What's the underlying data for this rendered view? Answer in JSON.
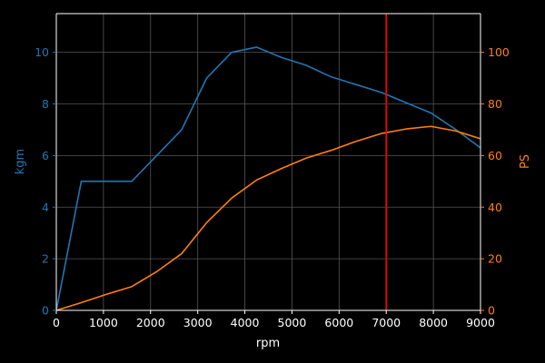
{
  "chart_data": {
    "type": "line",
    "xlabel": "rpm",
    "ylabel_left": "kgm",
    "ylabel_right": "PS",
    "xlim": [
      0,
      9000
    ],
    "ylim_left": [
      0,
      11.5
    ],
    "ylim_right": [
      0,
      115
    ],
    "x_ticks": [
      0,
      1000,
      2000,
      3000,
      4000,
      5000,
      6000,
      7000,
      8000,
      9000
    ],
    "y_ticks_left": [
      0,
      2,
      4,
      6,
      8,
      10
    ],
    "y_ticks_right": [
      0,
      20,
      40,
      60,
      80,
      100
    ],
    "grid": true,
    "series": [
      {
        "axis": "left",
        "color": "#1f77b4",
        "x": [
          0,
          530,
          1600,
          2130,
          2660,
          3190,
          3720,
          4250,
          4780,
          5300,
          5830,
          6360,
          6890,
          7420,
          7950,
          8480,
          9000
        ],
        "y": [
          0,
          5.0,
          5.0,
          6.0,
          7.0,
          9.0,
          10.0,
          10.2,
          9.8,
          9.5,
          9.05,
          8.75,
          8.45,
          8.05,
          7.65,
          7.0,
          6.3
        ]
      },
      {
        "axis": "right",
        "color": "#ff7f0e",
        "x": [
          0,
          530,
          1060,
          1600,
          2130,
          2660,
          3190,
          3720,
          4250,
          4780,
          5300,
          5830,
          6360,
          6890,
          7420,
          7950,
          8480,
          9000
        ],
        "y": [
          0,
          3.0,
          6.2,
          9.2,
          15.0,
          22.0,
          34.0,
          43.5,
          50.5,
          55.0,
          59.0,
          62.0,
          65.5,
          68.5,
          70.3,
          71.3,
          69.5,
          66.5
        ]
      }
    ],
    "vline": {
      "x": 7000,
      "color": "#ff0000"
    }
  },
  "colors": {
    "background": "#000000",
    "axis": "#ffffff",
    "grid": "#555555",
    "left_axis_text": "#1f77b4",
    "right_axis_text": "#ff7f0e"
  }
}
